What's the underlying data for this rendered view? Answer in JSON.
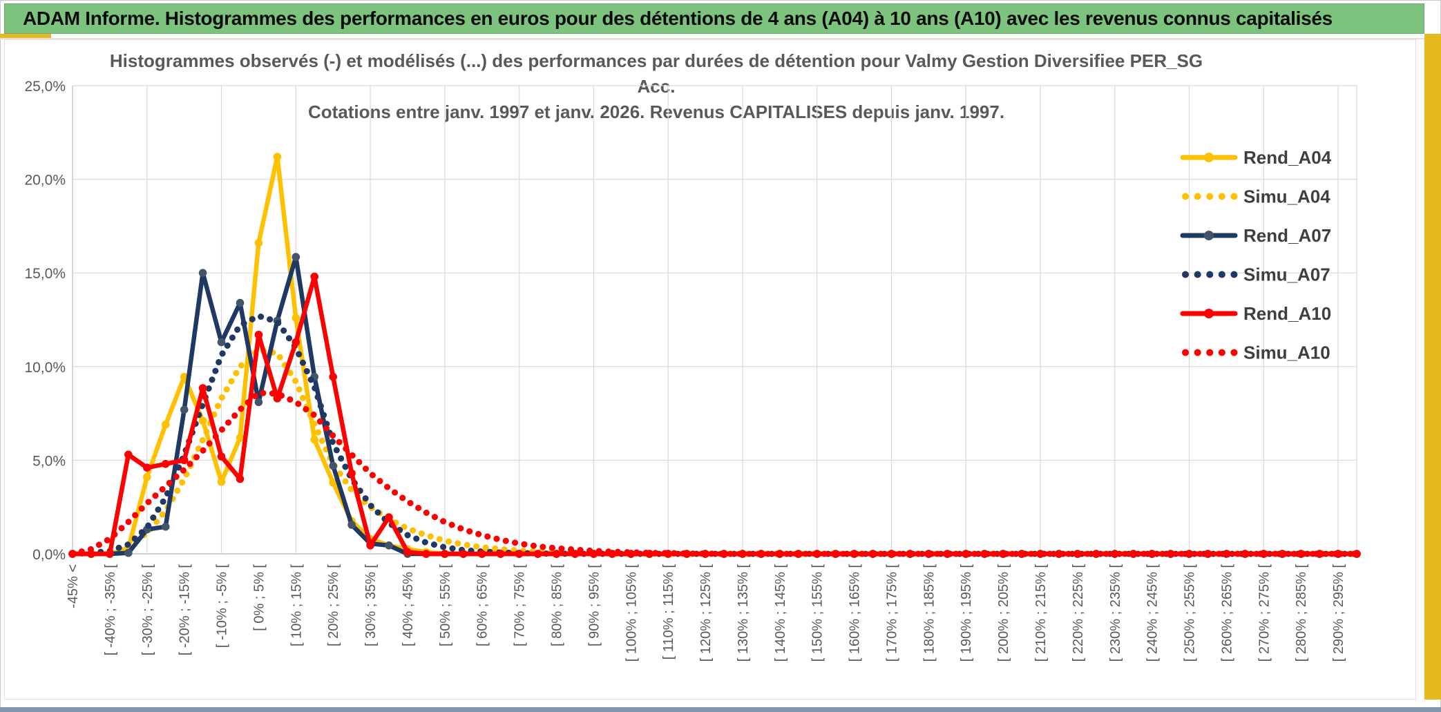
{
  "header": {
    "title": "ADAM Informe. Histogrammes des performances en euros pour des détentions de 4 ans (A04) à 10 ans (A10) avec les revenus connus capitalisés"
  },
  "chart_data": {
    "type": "line",
    "title_line1": "Histogrammes observés (-) et modélisés (...) des performances par durées de détention pour Valmy Gestion Diversifiee PER_SG Acc.",
    "title_line2": "Cotations entre janv. 1997 et janv. 2026. Revenus CAPITALISES depuis janv. 1997.",
    "ylim": [
      0,
      25
    ],
    "ytick_labels": [
      "0,0%",
      "5,0%",
      "10,0%",
      "15,0%",
      "20,0%",
      "25,0%"
    ],
    "x_bin_count": 70,
    "xtick_every": 2,
    "xtick_labels": [
      "-45% <",
      "[ -40% ; -35% [",
      "[ -30% ; -25% [",
      "[ -20% ; -15% [",
      "[ -10% ; -5% [",
      "[ 0% ; 5% [",
      "[ 10% ; 15% [",
      "[ 20% ; 25% [",
      "[ 30% ; 35% [",
      "[ 40% ; 45% [",
      "[ 50% ; 55% [",
      "[ 60% ; 65% [",
      "[ 70% ; 75% [",
      "[ 80% ; 85% [",
      "[ 90% ; 95% [",
      "[ 100% ; 105% [",
      "[ 110% ; 115% [",
      "[ 120% ; 125% [",
      "[ 130% ; 135% [",
      "[ 140% ; 145% [",
      "[ 150% ; 155% [",
      "[ 160% ; 165% [",
      "[ 170% ; 175% [",
      "[ 180% ; 185% [",
      "[ 190% ; 195% [",
      "[ 200% ; 205% [",
      "[ 210% ; 215% [",
      "[ 220% ; 225% [",
      "[ 230% ; 235% [",
      "[ 240% ; 245% [",
      "[ 250% ; 255% [",
      "[ 260% ; 265% [",
      "[ 270% ; 275% [",
      "[ 280% ; 285% [",
      "[ 290% ; 295% ["
    ],
    "grid_on": true,
    "grid_color": "#d9d9d9",
    "axis_color": "#bfbfbf",
    "tick_label_color": "#595959",
    "legend_position": "right-overlay",
    "legend_text_color": "#3f3f3f",
    "series": [
      {
        "name": "Rend_A04",
        "style": "solid",
        "color": "#FFC000",
        "marker_color": "#FFC000",
        "values": [
          0,
          0,
          0,
          0.3,
          4.1,
          6.9,
          9.45,
          7.1,
          3.85,
          6.2,
          16.6,
          21.2,
          12.6,
          6.1,
          3.8,
          1.75,
          0.8,
          0.45,
          0.25,
          0.1,
          0,
          0,
          0,
          0,
          0,
          0,
          0,
          0,
          0,
          0,
          0,
          0,
          0,
          0,
          0,
          0,
          0,
          0,
          0,
          0,
          0,
          0,
          0,
          0,
          0,
          0,
          0,
          0,
          0,
          0,
          0,
          0,
          0,
          0,
          0,
          0,
          0,
          0,
          0,
          0,
          0,
          0,
          0,
          0,
          0,
          0,
          0,
          0,
          0,
          0
        ]
      },
      {
        "name": "Simu_A04",
        "style": "dotted",
        "color": "#FFC000",
        "values": [
          0,
          0.05,
          0.15,
          0.45,
          1.1,
          2.3,
          4.0,
          6.1,
          8.3,
          10.0,
          10.9,
          10.7,
          9.2,
          6.9,
          4.8,
          3.4,
          2.5,
          1.85,
          1.35,
          1.0,
          0.7,
          0.5,
          0.35,
          0.25,
          0.17,
          0.12,
          0.08,
          0.05,
          0.03,
          0.02,
          0.01,
          0,
          0,
          0,
          0,
          0,
          0,
          0,
          0,
          0,
          0,
          0,
          0,
          0,
          0,
          0,
          0,
          0,
          0,
          0,
          0,
          0,
          0,
          0,
          0,
          0,
          0,
          0,
          0,
          0,
          0,
          0,
          0,
          0,
          0,
          0,
          0,
          0,
          0,
          0
        ]
      },
      {
        "name": "Rend_A07",
        "style": "solid",
        "color": "#1F3864",
        "marker_color": "#44546A",
        "values": [
          0,
          0,
          0,
          0.05,
          1.3,
          1.45,
          7.7,
          15.0,
          11.3,
          13.4,
          8.1,
          12.45,
          15.85,
          9.45,
          4.7,
          1.55,
          0.55,
          0.45,
          0,
          0,
          0,
          0,
          0,
          0,
          0,
          0,
          0,
          0,
          0,
          0,
          0,
          0,
          0,
          0,
          0,
          0,
          0,
          0,
          0,
          0,
          0,
          0,
          0,
          0,
          0,
          0,
          0,
          0,
          0,
          0,
          0,
          0,
          0,
          0,
          0,
          0,
          0,
          0,
          0,
          0,
          0,
          0,
          0,
          0,
          0,
          0,
          0,
          0,
          0,
          0
        ]
      },
      {
        "name": "Simu_A07",
        "style": "dotted",
        "color": "#1F3864",
        "values": [
          0,
          0.05,
          0.15,
          0.5,
          1.4,
          3.0,
          5.3,
          8.0,
          10.6,
          12.2,
          12.7,
          12.4,
          11.0,
          8.9,
          5.9,
          4.0,
          2.6,
          1.65,
          1.0,
          0.6,
          0.35,
          0.2,
          0.12,
          0.07,
          0.04,
          0.02,
          0.01,
          0,
          0,
          0,
          0,
          0,
          0,
          0,
          0,
          0,
          0,
          0,
          0,
          0,
          0,
          0,
          0,
          0,
          0,
          0,
          0,
          0,
          0,
          0,
          0,
          0,
          0,
          0,
          0,
          0,
          0,
          0,
          0,
          0,
          0,
          0,
          0,
          0,
          0,
          0,
          0,
          0,
          0,
          0
        ]
      },
      {
        "name": "Rend_A10",
        "style": "solid",
        "color": "#FF0000",
        "marker_color": "#FF0000",
        "values": [
          0,
          0,
          0,
          5.3,
          4.6,
          4.8,
          5.0,
          8.85,
          5.2,
          4.0,
          11.7,
          8.3,
          11.3,
          14.8,
          9.45,
          4.3,
          0.45,
          1.95,
          0.1,
          0,
          0,
          0,
          0,
          0,
          0,
          0,
          0,
          0,
          0,
          0,
          0,
          0,
          0,
          0,
          0,
          0,
          0,
          0,
          0,
          0,
          0,
          0,
          0,
          0,
          0,
          0,
          0,
          0,
          0,
          0,
          0,
          0,
          0,
          0,
          0,
          0,
          0,
          0,
          0,
          0,
          0,
          0,
          0,
          0,
          0,
          0,
          0,
          0,
          0,
          0
        ]
      },
      {
        "name": "Simu_A10",
        "style": "dotted",
        "color": "#FF0000",
        "values": [
          0,
          0.25,
          0.8,
          1.7,
          2.7,
          3.6,
          4.5,
          5.5,
          6.6,
          7.7,
          8.6,
          8.55,
          8.1,
          7.4,
          6.3,
          5.3,
          4.3,
          3.5,
          2.8,
          2.2,
          1.7,
          1.3,
          1.0,
          0.75,
          0.55,
          0.4,
          0.3,
          0.22,
          0.16,
          0.11,
          0.08,
          0.05,
          0.04,
          0.02,
          0.01,
          0,
          0,
          0,
          0,
          0,
          0,
          0,
          0,
          0,
          0,
          0,
          0,
          0,
          0,
          0,
          0,
          0,
          0,
          0,
          0,
          0,
          0,
          0,
          0,
          0,
          0,
          0,
          0,
          0,
          0,
          0,
          0,
          0,
          0,
          0
        ]
      }
    ]
  },
  "accents": {
    "header_green": "#7cc47d",
    "gold": "#e6b91e",
    "bottom_bar_blue": "#8096ae"
  }
}
